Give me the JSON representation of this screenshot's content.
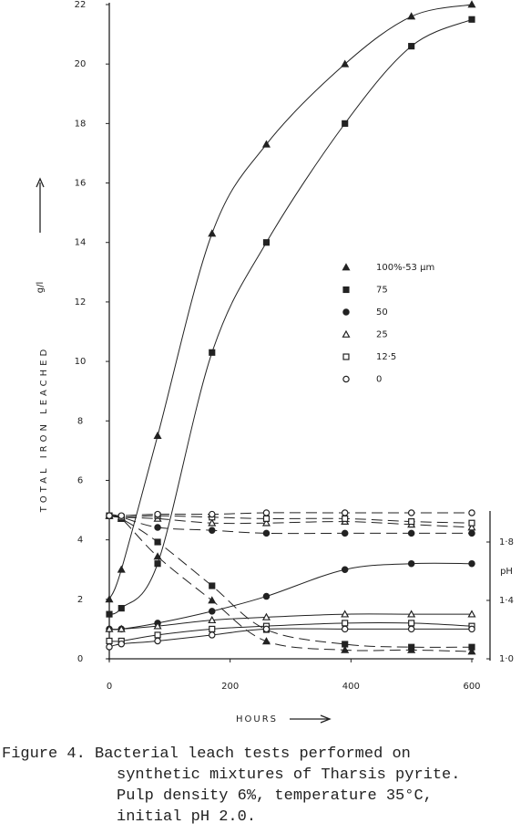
{
  "chart_data": {
    "type": "line",
    "x_label": "HOURS",
    "y_label": "TOTAL IRON LEACHED",
    "y_unit": "g/l",
    "y2_label": "pH",
    "xlim": [
      0,
      600
    ],
    "xticks": [
      0,
      200,
      400,
      600
    ],
    "ylim": [
      0,
      22
    ],
    "yticks": [
      0,
      2,
      4,
      6,
      8,
      10,
      12,
      14,
      16,
      18,
      20,
      22
    ],
    "y2lim": [
      1.0,
      2.0
    ],
    "y2ticks": [
      {
        "value": 1.0,
        "label": "1·0"
      },
      {
        "value": 1.4,
        "label": "1·4"
      },
      {
        "value": 1.8,
        "label": "1·8"
      }
    ],
    "color": "#222",
    "x": [
      0,
      20,
      80,
      170,
      260,
      390,
      500,
      600
    ],
    "series": [
      {
        "name": "100%-53 µm",
        "marker": "triangle",
        "filled": true,
        "values": [
          2.0,
          3.0,
          7.5,
          14.3,
          17.3,
          20.0,
          21.6,
          22.0
        ],
        "ph": [
          1.98,
          1.96,
          1.7,
          1.4,
          1.12,
          1.06,
          1.06,
          1.05
        ]
      },
      {
        "name": "75",
        "marker": "square",
        "filled": true,
        "values": [
          1.5,
          1.7,
          3.2,
          10.3,
          14.0,
          18.0,
          20.6,
          21.5
        ],
        "ph": [
          1.98,
          1.96,
          1.8,
          1.5,
          1.2,
          1.1,
          1.08,
          1.08
        ]
      },
      {
        "name": "50",
        "marker": "circle",
        "filled": true,
        "values": [
          1.0,
          1.0,
          1.2,
          1.6,
          2.1,
          3.0,
          3.2,
          3.2
        ],
        "ph": [
          1.98,
          1.97,
          1.9,
          1.88,
          1.86,
          1.86,
          1.86,
          1.86
        ]
      },
      {
        "name": "25",
        "marker": "triangle",
        "filled": false,
        "values": [
          1.0,
          1.0,
          1.1,
          1.3,
          1.4,
          1.5,
          1.5,
          1.5
        ],
        "ph": [
          1.98,
          1.97,
          1.96,
          1.93,
          1.93,
          1.94,
          1.92,
          1.9
        ]
      },
      {
        "name": "12·5",
        "marker": "square",
        "filled": false,
        "values": [
          0.6,
          0.6,
          0.8,
          1.0,
          1.1,
          1.2,
          1.2,
          1.1
        ],
        "ph": [
          1.98,
          1.97,
          1.98,
          1.97,
          1.96,
          1.96,
          1.94,
          1.93
        ]
      },
      {
        "name": "0",
        "marker": "circle",
        "filled": false,
        "values": [
          0.4,
          0.5,
          0.6,
          0.8,
          1.0,
          1.0,
          1.0,
          1.0
        ],
        "ph": [
          1.98,
          1.98,
          1.99,
          1.99,
          2.0,
          2.0,
          2.0,
          2.0
        ]
      }
    ],
    "caption": [
      "Figure 4. Bacterial leach tests performed on",
      "synthetic mixtures of Tharsis pyrite.",
      "Pulp density 6%, temperature 35°C,",
      "initial pH 2.0."
    ]
  }
}
